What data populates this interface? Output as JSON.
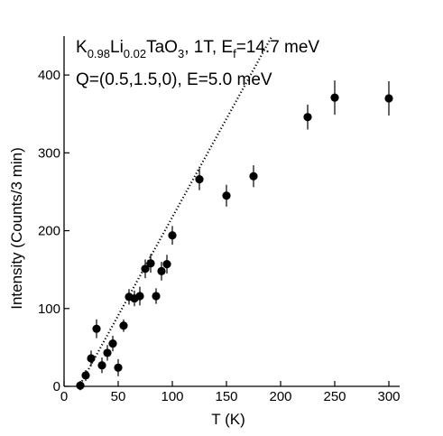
{
  "chart_data": {
    "type": "scatter",
    "title": "",
    "xlabel": "T (K)",
    "ylabel": "Intensity (Counts/3 min)",
    "xlim": [
      0,
      310
    ],
    "ylim": [
      0,
      450
    ],
    "x_ticks": [
      0,
      50,
      100,
      150,
      200,
      250,
      300
    ],
    "y_ticks": [
      0,
      100,
      200,
      300,
      400
    ],
    "grid": false,
    "annotations": {
      "line1": {
        "k": "K",
        "k_sub": "0.98",
        "li": "Li",
        "li_sub": "0.02",
        "tao": "TaO",
        "tao_sub": "3",
        "field": ", 1T, E",
        "ef_sub": "f",
        "energy": "=14.7 meV"
      },
      "line2": "Q=(0.5,1.5,0), E=5.0 meV"
    },
    "series": [
      {
        "marker": "filled-circle",
        "color": "#000000",
        "points": [
          {
            "x": 15,
            "y": 1,
            "err": 6
          },
          {
            "x": 20,
            "y": 14,
            "err": 7
          },
          {
            "x": 25,
            "y": 36,
            "err": 10
          },
          {
            "x": 30,
            "y": 74,
            "err": 12
          },
          {
            "x": 35,
            "y": 27,
            "err": 10
          },
          {
            "x": 40,
            "y": 43,
            "err": 10
          },
          {
            "x": 45,
            "y": 55,
            "err": 10
          },
          {
            "x": 50,
            "y": 24,
            "err": 11
          },
          {
            "x": 55,
            "y": 78,
            "err": 8
          },
          {
            "x": 60,
            "y": 115,
            "err": 10
          },
          {
            "x": 65,
            "y": 113,
            "err": 10
          },
          {
            "x": 70,
            "y": 116,
            "err": 12
          },
          {
            "x": 75,
            "y": 151,
            "err": 12
          },
          {
            "x": 80,
            "y": 158,
            "err": 12
          },
          {
            "x": 85,
            "y": 116,
            "err": 10
          },
          {
            "x": 90,
            "y": 148,
            "err": 12
          },
          {
            "x": 95,
            "y": 157,
            "err": 12
          },
          {
            "x": 100,
            "y": 194,
            "err": 12
          },
          {
            "x": 125,
            "y": 266,
            "err": 14
          },
          {
            "x": 150,
            "y": 245,
            "err": 14
          },
          {
            "x": 175,
            "y": 270,
            "err": 14
          },
          {
            "x": 225,
            "y": 346,
            "err": 16
          },
          {
            "x": 250,
            "y": 371,
            "err": 22
          },
          {
            "x": 300,
            "y": 370,
            "err": 22
          }
        ]
      }
    ],
    "fit_line": {
      "style": "dotted",
      "color": "#000000",
      "x": [
        12,
        194
      ],
      "y": [
        -5,
        455
      ]
    }
  }
}
